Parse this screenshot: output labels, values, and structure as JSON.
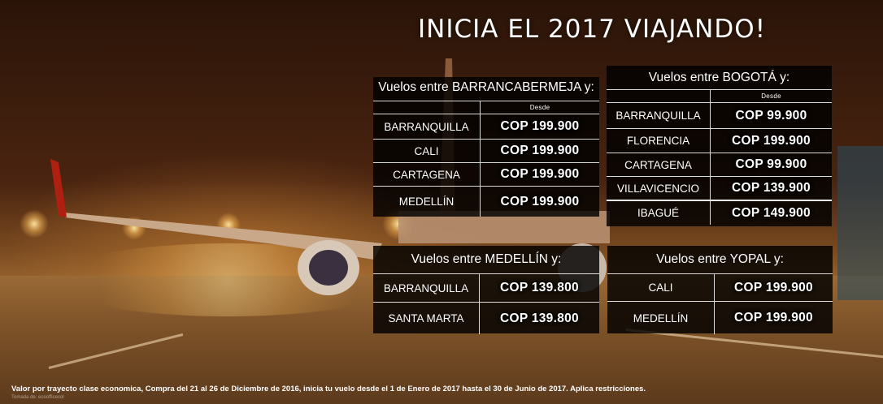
{
  "title": "INICIA EL 2017 VIAJANDO!",
  "desde_label": "Desde",
  "panels": [
    {
      "heading": "Vuelos entre BARRANCABERMEJA y:",
      "routes": [
        {
          "city": "BARRANQUILLA",
          "price": "COP  199.900"
        },
        {
          "city": "CALI",
          "price": "COP  199.900"
        },
        {
          "city": "CARTAGENA",
          "price": "COP  199.900"
        },
        {
          "city": "MEDELLÍN",
          "price": "COP  199.900"
        }
      ]
    },
    {
      "heading": "Vuelos entre BOGOTÁ y:",
      "routes": [
        {
          "city": "BARRANQUILLA",
          "price": "COP  99.900"
        },
        {
          "city": "FLORENCIA",
          "price": "COP  199.900"
        },
        {
          "city": "CARTAGENA",
          "price": "COP  99.900"
        },
        {
          "city": "VILLAVICENCIO",
          "price": "COP  139.900"
        },
        {
          "city": "IBAGUÉ",
          "price": "COP  149.900"
        }
      ]
    },
    {
      "heading": "Vuelos entre MEDELLÍN y:",
      "routes": [
        {
          "city": "BARRANQUILLA",
          "price": "COP  139.800"
        },
        {
          "city": "SANTA MARTA",
          "price": "COP  139.800"
        }
      ]
    },
    {
      "heading": "Vuelos entre YOPAL y:",
      "routes": [
        {
          "city": "CALI",
          "price": "COP  199.900"
        },
        {
          "city": "MEDELLÍN",
          "price": "COP  199.900"
        }
      ]
    }
  ],
  "footer": "Valor por trayecto clase economica, Compra del 21 al 26 de Diciembre de 2016, inicia tu vuelo desde el 1 de Enero de 2017  hasta el 30 de Junio de 2017. Aplica restricciones.",
  "credit": "Tomada de: ecoofficecol"
}
